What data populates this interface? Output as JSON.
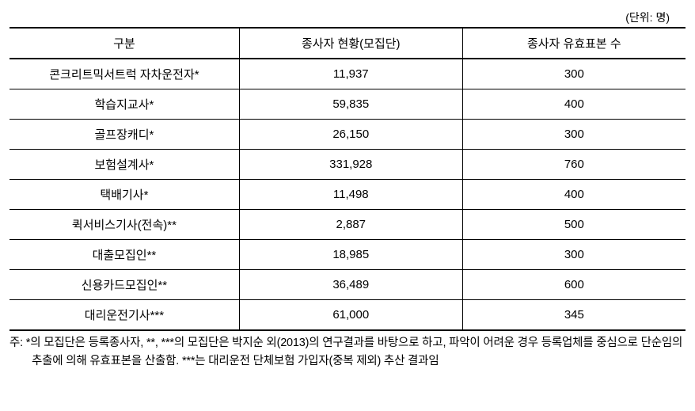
{
  "unit_label": "(단위: 명)",
  "table": {
    "columns": [
      "구분",
      "종사자 현황(모집단)",
      "종사자 유효표본 수"
    ],
    "rows": [
      [
        "콘크리트믹서트럭 자차운전자*",
        "11,937",
        "300"
      ],
      [
        "학습지교사*",
        "59,835",
        "400"
      ],
      [
        "골프장캐디*",
        "26,150",
        "300"
      ],
      [
        "보험설계사*",
        "331,928",
        "760"
      ],
      [
        "택배기사*",
        "11,498",
        "400"
      ],
      [
        "퀵서비스기사(전속)**",
        "2,887",
        "500"
      ],
      [
        "대출모집인**",
        "18,985",
        "300"
      ],
      [
        "신용카드모집인**",
        "36,489",
        "600"
      ],
      [
        "대리운전기사***",
        "61,000",
        "345"
      ]
    ]
  },
  "footnote": "주: *의 모집단은 등록종사자, **, ***의 모집단은 박지순 외(2013)의 연구결과를 바탕으로 하고, 파악이 어려운 경우 등록업체를 중심으로 단순임의추출에 의해 유효표본을 산출함. ***는 대리운전 단체보험 가입자(중복 제외) 추산 결과임"
}
